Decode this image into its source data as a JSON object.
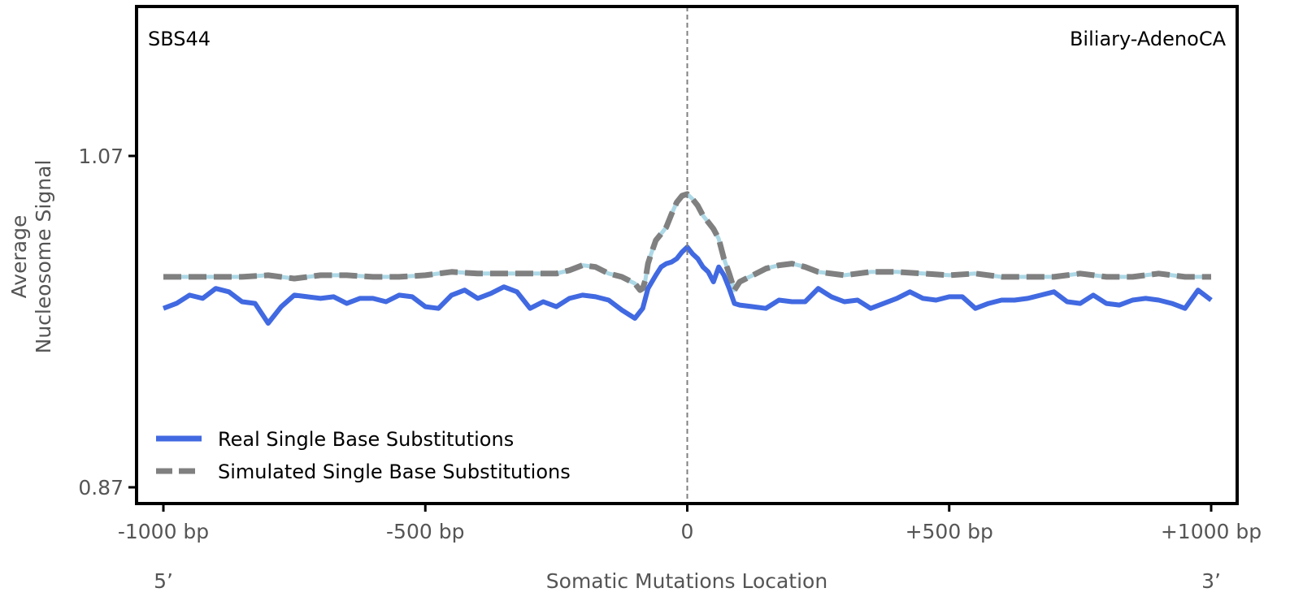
{
  "chart_data": {
    "type": "line",
    "signature": "SBS44",
    "cancer_type": "Biliary-AdenoCA",
    "xlabel": "Somatic Mutations Location",
    "ylabel_line1": "Average",
    "ylabel_line2": "Nucleosome Signal",
    "xlim": [
      -1000,
      1000
    ],
    "ylim": [
      0.86,
      1.14
    ],
    "x_ticks": [
      -1000,
      -500,
      0,
      500,
      1000
    ],
    "x_tick_labels": [
      "-1000 bp",
      "-500 bp",
      "0",
      "+500 bp",
      "+1000 bp"
    ],
    "y_ticks": [
      0.87,
      1.07
    ],
    "y_tick_labels": [
      "0.87",
      "1.07"
    ],
    "end_labels": {
      "left": "5’",
      "right": "3’"
    },
    "center_line_x": 0,
    "legend_position": "lower-left",
    "series": [
      {
        "name": "Real Single Base Substitutions",
        "color": "#4169e1",
        "style": "solid",
        "x": [
          -1000,
          -975,
          -950,
          -925,
          -900,
          -875,
          -850,
          -825,
          -800,
          -775,
          -750,
          -725,
          -700,
          -675,
          -650,
          -625,
          -600,
          -575,
          -550,
          -525,
          -500,
          -475,
          -450,
          -425,
          -400,
          -375,
          -350,
          -325,
          -300,
          -275,
          -250,
          -225,
          -200,
          -175,
          -150,
          -125,
          -100,
          -85,
          -75,
          -60,
          -50,
          -40,
          -30,
          -20,
          -10,
          0,
          10,
          20,
          30,
          40,
          50,
          60,
          70,
          80,
          90,
          100,
          125,
          150,
          175,
          200,
          225,
          250,
          275,
          300,
          325,
          350,
          375,
          400,
          425,
          450,
          475,
          500,
          525,
          550,
          575,
          600,
          625,
          650,
          675,
          700,
          725,
          750,
          775,
          800,
          825,
          850,
          875,
          900,
          925,
          950,
          975,
          1000
        ],
        "y": [
          0.978,
          0.981,
          0.986,
          0.984,
          0.99,
          0.988,
          0.982,
          0.981,
          0.969,
          0.979,
          0.986,
          0.985,
          0.984,
          0.985,
          0.981,
          0.984,
          0.984,
          0.982,
          0.986,
          0.985,
          0.979,
          0.978,
          0.986,
          0.989,
          0.984,
          0.987,
          0.991,
          0.988,
          0.978,
          0.982,
          0.979,
          0.984,
          0.986,
          0.985,
          0.983,
          0.977,
          0.972,
          0.978,
          0.99,
          0.998,
          1.003,
          1.005,
          1.006,
          1.008,
          1.012,
          1.015,
          1.011,
          1.008,
          1.003,
          1.0,
          0.994,
          1.003,
          0.998,
          0.99,
          0.981,
          0.98,
          0.979,
          0.978,
          0.983,
          0.982,
          0.982,
          0.99,
          0.985,
          0.982,
          0.983,
          0.978,
          0.981,
          0.984,
          0.988,
          0.984,
          0.983,
          0.985,
          0.985,
          0.978,
          0.981,
          0.983,
          0.983,
          0.984,
          0.986,
          0.988,
          0.982,
          0.981,
          0.986,
          0.981,
          0.98,
          0.983,
          0.984,
          0.983,
          0.981,
          0.978,
          0.989,
          0.983
        ]
      },
      {
        "name": "Simulated Single Base Substitutions",
        "color": "#808080",
        "underlay_color": "#add8e6",
        "style": "dashed",
        "x": [
          -1000,
          -950,
          -900,
          -850,
          -800,
          -750,
          -700,
          -650,
          -600,
          -550,
          -500,
          -450,
          -400,
          -350,
          -300,
          -250,
          -225,
          -200,
          -175,
          -150,
          -125,
          -100,
          -90,
          -85,
          -80,
          -75,
          -70,
          -60,
          -50,
          -40,
          -30,
          -20,
          -10,
          0,
          10,
          20,
          30,
          40,
          50,
          60,
          70,
          80,
          90,
          100,
          125,
          150,
          175,
          200,
          225,
          250,
          300,
          350,
          400,
          450,
          500,
          550,
          600,
          650,
          700,
          750,
          800,
          850,
          900,
          950,
          1000
        ],
        "y": [
          0.997,
          0.997,
          0.997,
          0.997,
          0.998,
          0.996,
          0.998,
          0.998,
          0.997,
          0.997,
          0.998,
          1.0,
          0.999,
          0.999,
          0.999,
          0.999,
          1.001,
          1.004,
          1.003,
          0.999,
          0.997,
          0.993,
          0.989,
          0.99,
          0.995,
          1.005,
          1.01,
          1.019,
          1.023,
          1.027,
          1.035,
          1.042,
          1.046,
          1.047,
          1.044,
          1.04,
          1.034,
          1.03,
          1.026,
          1.02,
          1.008,
          0.999,
          0.989,
          0.994,
          0.998,
          1.002,
          1.004,
          1.005,
          1.003,
          1.0,
          0.998,
          1.0,
          1.0,
          0.999,
          0.998,
          0.999,
          0.997,
          0.997,
          0.997,
          0.999,
          0.997,
          0.997,
          0.999,
          0.997,
          0.997
        ]
      }
    ]
  },
  "colors": {
    "frame": "#000000",
    "tick_text": "#555555",
    "center_line": "#808080"
  }
}
